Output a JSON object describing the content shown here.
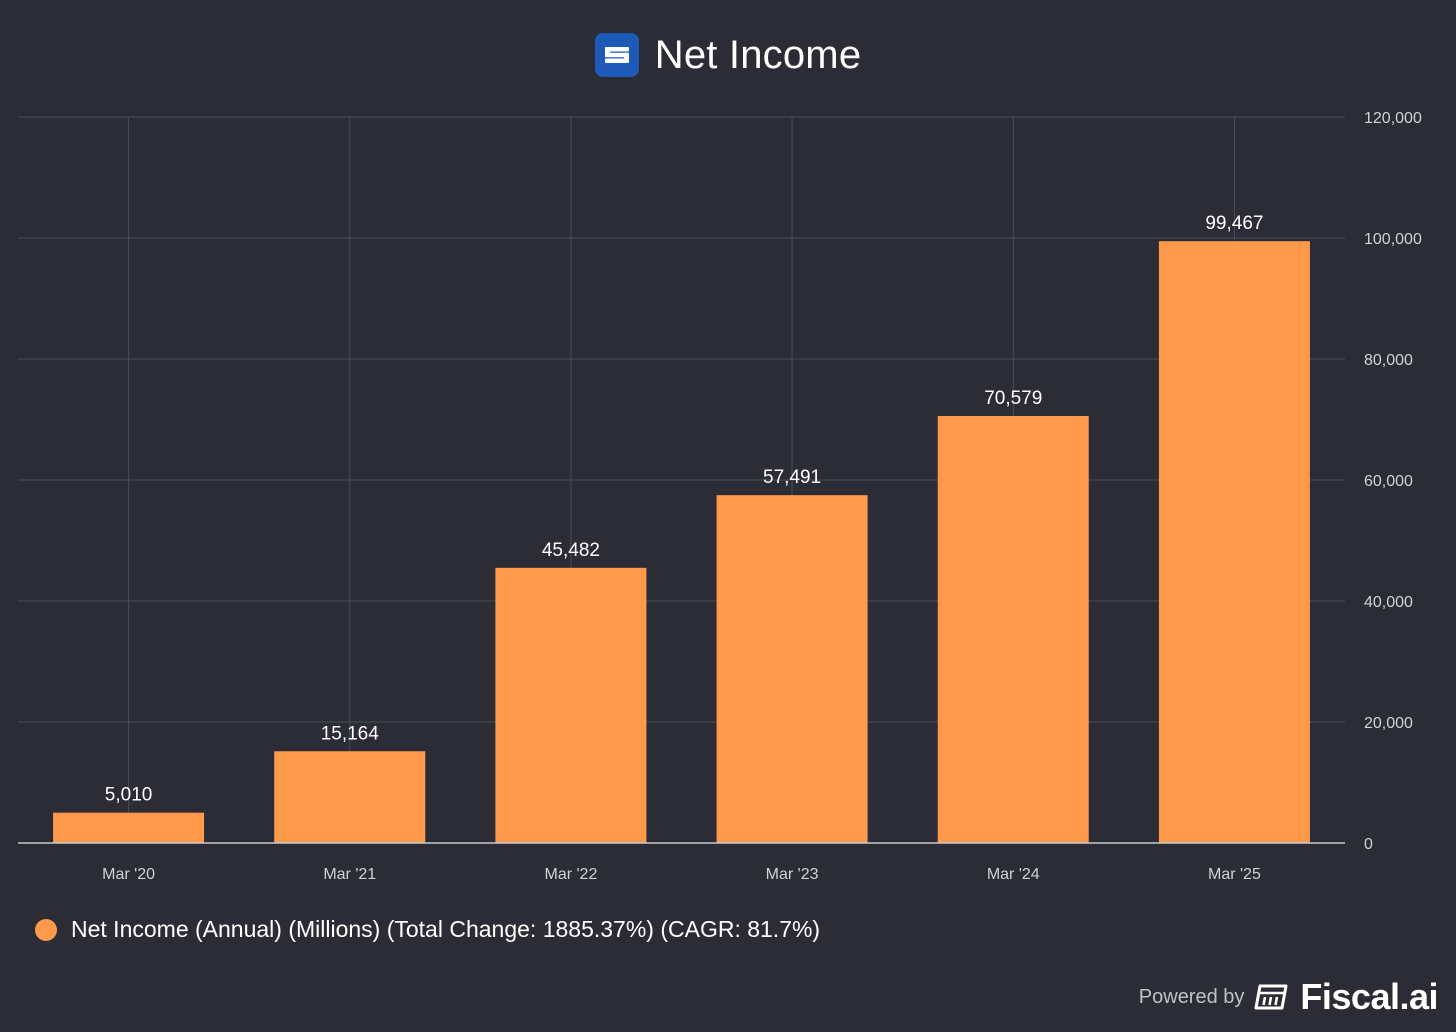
{
  "title": "Net Income",
  "logo_icon": "s-logo-icon",
  "colors": {
    "background": "#2b2c35",
    "bar": "#ff9a4d",
    "grid": "#4a4c56",
    "axis_text": "#d0d2d8",
    "logo": "#1e5bb8"
  },
  "chart_data": {
    "type": "bar",
    "title": "Net Income",
    "categories": [
      "Mar '20",
      "Mar '21",
      "Mar '22",
      "Mar '23",
      "Mar '24",
      "Mar '25"
    ],
    "series": [
      {
        "name": "Net Income (Annual) (Millions) (Total Change: 1885.37%) (CAGR: 81.7%)",
        "values": [
          5010,
          15164,
          45482,
          57491,
          70579,
          99467
        ],
        "labels": [
          "5,010",
          "15,164",
          "45,482",
          "57,491",
          "70,579",
          "99,467"
        ]
      }
    ],
    "y_axis": {
      "position": "right",
      "ylim": [
        0,
        120000
      ],
      "ticks": [
        0,
        20000,
        40000,
        60000,
        80000,
        100000,
        120000
      ],
      "tick_labels": [
        "0",
        "20,000",
        "40,000",
        "60,000",
        "80,000",
        "100,000",
        "120,000"
      ]
    },
    "grid": true,
    "legend_position": "bottom-left"
  },
  "legend": {
    "label": "Net Income (Annual) (Millions) (Total Change: 1885.37%) (CAGR: 81.7%)"
  },
  "footer": {
    "powered_by": "Powered by",
    "brand": "Fiscal.ai",
    "brand_icon": "fiscal-logo-icon"
  }
}
